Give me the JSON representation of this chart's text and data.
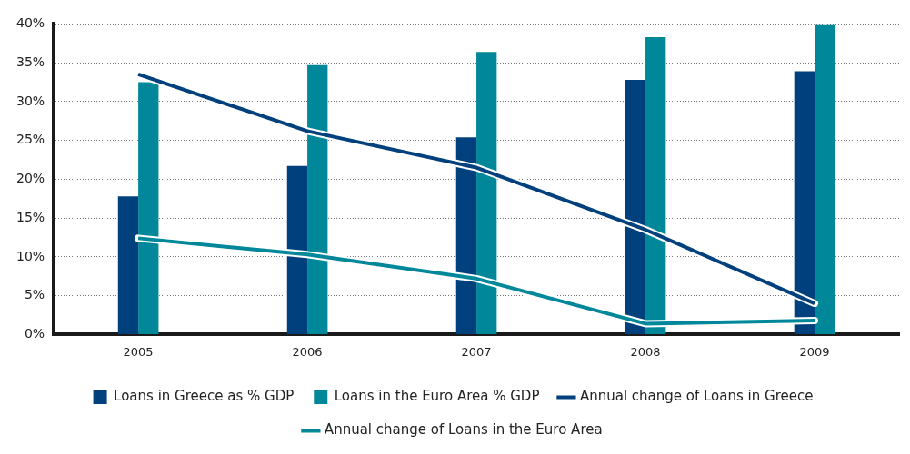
{
  "chart_data": {
    "type": "bar",
    "categories": [
      "2005",
      "2006",
      "2007",
      "2008",
      "2009"
    ],
    "series": [
      {
        "name": "Loans in Greece as % GDP",
        "color": "#00407c",
        "values": [
          17.8,
          21.7,
          25.4,
          32.8,
          33.9
        ]
      },
      {
        "name": "Loans in the Euro Area % GDP",
        "color": "#00879a",
        "values": [
          32.5,
          34.7,
          36.4,
          38.3,
          40
        ]
      },
      {
        "name": "Annual change of Loans in Greece",
        "type": "line",
        "color": "#00407c",
        "values": [
          33.5,
          26.2,
          21.5,
          13.5,
          4
        ]
      },
      {
        "name": "Annual change of Loans in the Euro Area",
        "type": "line",
        "color": "#00879a",
        "values": [
          12.4,
          10.3,
          7.2,
          1.4,
          1.8
        ]
      }
    ],
    "ylim": [
      0,
      40
    ],
    "yticks": [
      {
        "value": 0,
        "label": "0%"
      },
      {
        "value": 5,
        "label": "5%"
      },
      {
        "value": 10,
        "label": "10%"
      },
      {
        "value": 15,
        "label": "15%"
      },
      {
        "value": 20,
        "label": "20%"
      },
      {
        "value": 25,
        "label": "25%"
      },
      {
        "value": 30,
        "label": "30%"
      },
      {
        "value": 35,
        "label": "35%"
      },
      {
        "value": 40,
        "label": "40%"
      }
    ],
    "grid": "y",
    "legend": "bottom",
    "marker": "none",
    "line_style": "solid"
  }
}
